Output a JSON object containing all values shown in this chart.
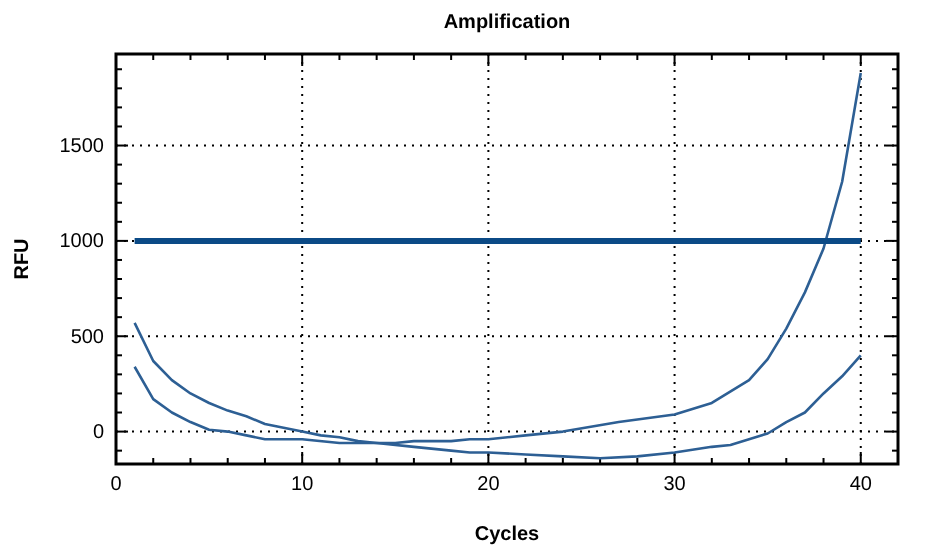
{
  "chart_data": {
    "type": "line",
    "title": "Amplification",
    "xlabel": "Cycles",
    "ylabel": "RFU",
    "xlim": [
      0,
      42
    ],
    "ylim": [
      -170,
      1980
    ],
    "xticks": [
      0,
      {
        "value": 2,
        "label": null
      },
      {
        "value": 4,
        "label": null
      },
      {
        "value": 6,
        "label": null
      },
      {
        "value": 8,
        "label": null
      },
      10,
      {
        "value": 12,
        "label": null
      },
      {
        "value": 14,
        "label": null
      },
      {
        "value": 16,
        "label": null
      },
      {
        "value": 18,
        "label": null
      },
      20,
      {
        "value": 22,
        "label": null
      },
      {
        "value": 24,
        "label": null
      },
      {
        "value": 26,
        "label": null
      },
      {
        "value": 28,
        "label": null
      },
      30,
      {
        "value": 32,
        "label": null
      },
      {
        "value": 34,
        "label": null
      },
      {
        "value": 36,
        "label": null
      },
      {
        "value": 38,
        "label": null
      },
      40
    ],
    "yticks": [
      {
        "value": -100,
        "label": null
      },
      0,
      {
        "value": 100,
        "label": null
      },
      {
        "value": 200,
        "label": null
      },
      {
        "value": 300,
        "label": null
      },
      {
        "value": 400,
        "label": null
      },
      500,
      {
        "value": 600,
        "label": null
      },
      {
        "value": 700,
        "label": null
      },
      {
        "value": 800,
        "label": null
      },
      {
        "value": 900,
        "label": null
      },
      1000,
      {
        "value": 1100,
        "label": null
      },
      {
        "value": 1200,
        "label": null
      },
      {
        "value": 1300,
        "label": null
      },
      {
        "value": 1400,
        "label": null
      },
      1500,
      {
        "value": 1600,
        "label": null
      },
      {
        "value": 1700,
        "label": null
      },
      {
        "value": 1800,
        "label": null
      },
      {
        "value": 1900,
        "label": null
      }
    ],
    "grid": true,
    "marker": "none",
    "line_style": "solid",
    "series": [
      {
        "color": "#2d5f94",
        "x": [
          1,
          2,
          3,
          4,
          5,
          6,
          7,
          8,
          9,
          10,
          11,
          12,
          13,
          14,
          15,
          16,
          17,
          18,
          19,
          20,
          22,
          24,
          27,
          30,
          32,
          34,
          35,
          36,
          37,
          38,
          39,
          40
        ],
        "values": [
          570,
          370,
          270,
          200,
          150,
          110,
          80,
          40,
          20,
          0,
          -20,
          -30,
          -50,
          -60,
          -60,
          -50,
          -50,
          -50,
          -40,
          -40,
          -20,
          0,
          50,
          90,
          150,
          270,
          380,
          540,
          730,
          960,
          1310,
          1880
        ]
      },
      {
        "color": "#2d5f94",
        "x": [
          1,
          2,
          3,
          4,
          5,
          6,
          7,
          8,
          10,
          12,
          14,
          16,
          18,
          19,
          20,
          22,
          24,
          26,
          28,
          30,
          32,
          33,
          34,
          35,
          36,
          37,
          38,
          39,
          40
        ],
        "values": [
          340,
          170,
          100,
          50,
          10,
          0,
          -20,
          -40,
          -40,
          -60,
          -60,
          -80,
          -100,
          -110,
          -110,
          -120,
          -130,
          -140,
          -130,
          -110,
          -80,
          -70,
          -40,
          -10,
          50,
          100,
          200,
          290,
          400
        ]
      },
      {
        "color": "#0b4a86",
        "x": [
          1,
          40
        ],
        "values": [
          1000,
          1000
        ]
      }
    ]
  }
}
